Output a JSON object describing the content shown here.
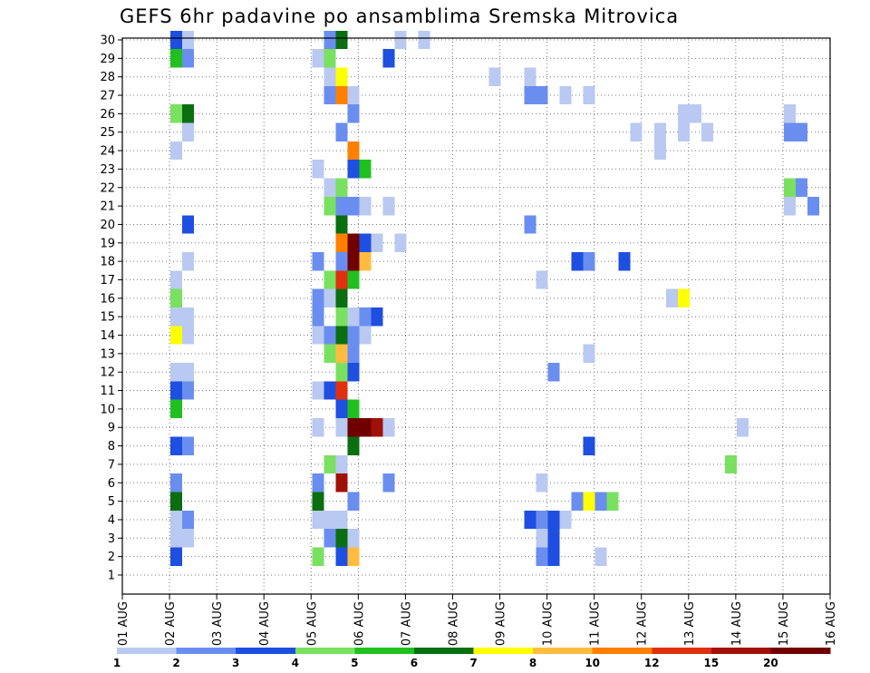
{
  "chart_data": {
    "type": "heatmap",
    "title": "GEFS 6hr padavine po ansamblima Sremska Mitrovica",
    "xlabel": "",
    "ylabel": "",
    "x_tick_labels": [
      "01 AUG",
      "02 AUG",
      "03 AUG",
      "04 AUG",
      "05 AUG",
      "06 AUG",
      "07 AUG",
      "08 AUG",
      "09 AUG",
      "10 AUG",
      "11 AUG",
      "12 AUG",
      "13 AUG",
      "14 AUG",
      "15 AUG",
      "16 AUG"
    ],
    "y_tick_labels": [
      "1",
      "2",
      "3",
      "4",
      "5",
      "6",
      "7",
      "8",
      "9",
      "10",
      "11",
      "12",
      "13",
      "14",
      "15",
      "16",
      "17",
      "18",
      "19",
      "20",
      "21",
      "22",
      "23",
      "24",
      "25",
      "26",
      "27",
      "28",
      "29",
      "30"
    ],
    "grid": true,
    "x_range_days": [
      0,
      15
    ],
    "y_range_members": [
      1,
      30
    ],
    "colorbar": {
      "labels": [
        "1",
        "2",
        "3",
        "4",
        "5",
        "6",
        "7",
        "8",
        "10",
        "12",
        "15",
        "20"
      ],
      "colors": [
        "#b9c9f2",
        "#6a8ef0",
        "#1f4fe0",
        "#7ae060",
        "#20c020",
        "#0b6e10",
        "#ffff00",
        "#ffbc40",
        "#ff8000",
        "#e03010",
        "#a01008",
        "#700000"
      ]
    },
    "legend_placement": "bottom",
    "cells": [
      {
        "m": 30,
        "d": 1.0,
        "c": 2
      },
      {
        "m": 30,
        "d": 1.25,
        "c": 0
      },
      {
        "m": 30,
        "d": 4.25,
        "c": 1
      },
      {
        "m": 30,
        "d": 4.5,
        "c": 5
      },
      {
        "m": 30,
        "d": 5.75,
        "c": 0
      },
      {
        "m": 30,
        "d": 6.25,
        "c": 0
      },
      {
        "m": 29,
        "d": 1.0,
        "c": 4
      },
      {
        "m": 29,
        "d": 1.25,
        "c": 1
      },
      {
        "m": 29,
        "d": 4.0,
        "c": 0
      },
      {
        "m": 29,
        "d": 4.25,
        "c": 3
      },
      {
        "m": 29,
        "d": 5.5,
        "c": 2
      },
      {
        "m": 28,
        "d": 4.25,
        "c": 0
      },
      {
        "m": 28,
        "d": 4.5,
        "c": 6
      },
      {
        "m": 28,
        "d": 7.75,
        "c": 0
      },
      {
        "m": 28,
        "d": 8.5,
        "c": 0
      },
      {
        "m": 27,
        "d": 4.25,
        "c": 1
      },
      {
        "m": 27,
        "d": 4.5,
        "c": 8
      },
      {
        "m": 27,
        "d": 4.75,
        "c": 0
      },
      {
        "m": 27,
        "d": 8.5,
        "c": 1
      },
      {
        "m": 27,
        "d": 8.75,
        "c": 1
      },
      {
        "m": 27,
        "d": 9.25,
        "c": 0
      },
      {
        "m": 27,
        "d": 9.75,
        "c": 0
      },
      {
        "m": 26,
        "d": 1.0,
        "c": 3
      },
      {
        "m": 26,
        "d": 1.25,
        "c": 5
      },
      {
        "m": 26,
        "d": 4.75,
        "c": 1
      },
      {
        "m": 26,
        "d": 11.75,
        "c": 0
      },
      {
        "m": 26,
        "d": 12.0,
        "c": 0
      },
      {
        "m": 26,
        "d": 14.0,
        "c": 0
      },
      {
        "m": 25,
        "d": 1.25,
        "c": 0
      },
      {
        "m": 25,
        "d": 4.5,
        "c": 1
      },
      {
        "m": 25,
        "d": 10.75,
        "c": 0
      },
      {
        "m": 25,
        "d": 11.25,
        "c": 0
      },
      {
        "m": 25,
        "d": 11.75,
        "c": 0
      },
      {
        "m": 25,
        "d": 12.25,
        "c": 0
      },
      {
        "m": 25,
        "d": 14.0,
        "c": 1
      },
      {
        "m": 25,
        "d": 14.25,
        "c": 1
      },
      {
        "m": 24,
        "d": 1.0,
        "c": 0
      },
      {
        "m": 24,
        "d": 4.75,
        "c": 8
      },
      {
        "m": 24,
        "d": 11.25,
        "c": 0
      },
      {
        "m": 23,
        "d": 4.0,
        "c": 0
      },
      {
        "m": 23,
        "d": 4.75,
        "c": 2
      },
      {
        "m": 23,
        "d": 5.0,
        "c": 4
      },
      {
        "m": 22,
        "d": 4.25,
        "c": 0
      },
      {
        "m": 22,
        "d": 4.5,
        "c": 3
      },
      {
        "m": 22,
        "d": 14.0,
        "c": 3
      },
      {
        "m": 22,
        "d": 14.25,
        "c": 1
      },
      {
        "m": 21,
        "d": 4.25,
        "c": 3
      },
      {
        "m": 21,
        "d": 4.5,
        "c": 1
      },
      {
        "m": 21,
        "d": 4.75,
        "c": 1
      },
      {
        "m": 21,
        "d": 5.0,
        "c": 0
      },
      {
        "m": 21,
        "d": 5.5,
        "c": 0
      },
      {
        "m": 21,
        "d": 14.0,
        "c": 0
      },
      {
        "m": 21,
        "d": 14.5,
        "c": 1
      },
      {
        "m": 20,
        "d": 1.25,
        "c": 2
      },
      {
        "m": 20,
        "d": 4.5,
        "c": 5
      },
      {
        "m": 20,
        "d": 8.5,
        "c": 1
      },
      {
        "m": 19,
        "d": 4.5,
        "c": 8
      },
      {
        "m": 19,
        "d": 4.75,
        "c": 11
      },
      {
        "m": 19,
        "d": 5.0,
        "c": 2
      },
      {
        "m": 19,
        "d": 5.25,
        "c": 0
      },
      {
        "m": 19,
        "d": 5.75,
        "c": 0
      },
      {
        "m": 18,
        "d": 1.25,
        "c": 0
      },
      {
        "m": 18,
        "d": 4.0,
        "c": 1
      },
      {
        "m": 18,
        "d": 4.5,
        "c": 1
      },
      {
        "m": 18,
        "d": 4.75,
        "c": 11
      },
      {
        "m": 18,
        "d": 5.0,
        "c": 7
      },
      {
        "m": 18,
        "d": 9.5,
        "c": 2
      },
      {
        "m": 18,
        "d": 9.75,
        "c": 1
      },
      {
        "m": 18,
        "d": 10.5,
        "c": 2
      },
      {
        "m": 17,
        "d": 1.0,
        "c": 0
      },
      {
        "m": 17,
        "d": 4.25,
        "c": 3
      },
      {
        "m": 17,
        "d": 4.5,
        "c": 9
      },
      {
        "m": 17,
        "d": 4.75,
        "c": 4
      },
      {
        "m": 17,
        "d": 8.75,
        "c": 0
      },
      {
        "m": 16,
        "d": 1.0,
        "c": 3
      },
      {
        "m": 16,
        "d": 4.0,
        "c": 1
      },
      {
        "m": 16,
        "d": 4.25,
        "c": 0
      },
      {
        "m": 16,
        "d": 4.5,
        "c": 5
      },
      {
        "m": 16,
        "d": 11.5,
        "c": 0
      },
      {
        "m": 16,
        "d": 11.75,
        "c": 6
      },
      {
        "m": 15,
        "d": 1.0,
        "c": 0
      },
      {
        "m": 15,
        "d": 1.25,
        "c": 0
      },
      {
        "m": 15,
        "d": 4.0,
        "c": 1
      },
      {
        "m": 15,
        "d": 4.5,
        "c": 3
      },
      {
        "m": 15,
        "d": 4.75,
        "c": 0
      },
      {
        "m": 15,
        "d": 5.0,
        "c": 1
      },
      {
        "m": 15,
        "d": 5.25,
        "c": 2
      },
      {
        "m": 14,
        "d": 1.0,
        "c": 6
      },
      {
        "m": 14,
        "d": 1.25,
        "c": 0
      },
      {
        "m": 14,
        "d": 4.0,
        "c": 0
      },
      {
        "m": 14,
        "d": 4.25,
        "c": 1
      },
      {
        "m": 14,
        "d": 4.5,
        "c": 5
      },
      {
        "m": 14,
        "d": 4.75,
        "c": 1
      },
      {
        "m": 14,
        "d": 5.0,
        "c": 0
      },
      {
        "m": 13,
        "d": 4.25,
        "c": 3
      },
      {
        "m": 13,
        "d": 4.5,
        "c": 7
      },
      {
        "m": 13,
        "d": 4.75,
        "c": 1
      },
      {
        "m": 13,
        "d": 9.75,
        "c": 0
      },
      {
        "m": 12,
        "d": 1.0,
        "c": 0
      },
      {
        "m": 12,
        "d": 1.25,
        "c": 0
      },
      {
        "m": 12,
        "d": 4.5,
        "c": 3
      },
      {
        "m": 12,
        "d": 4.75,
        "c": 2
      },
      {
        "m": 12,
        "d": 9.0,
        "c": 1
      },
      {
        "m": 11,
        "d": 1.0,
        "c": 2
      },
      {
        "m": 11,
        "d": 1.25,
        "c": 1
      },
      {
        "m": 11,
        "d": 4.0,
        "c": 0
      },
      {
        "m": 11,
        "d": 4.25,
        "c": 2
      },
      {
        "m": 11,
        "d": 4.5,
        "c": 9
      },
      {
        "m": 10,
        "d": 1.0,
        "c": 4
      },
      {
        "m": 10,
        "d": 4.5,
        "c": 2
      },
      {
        "m": 10,
        "d": 4.75,
        "c": 4
      },
      {
        "m": 9,
        "d": 4.0,
        "c": 0
      },
      {
        "m": 9,
        "d": 4.5,
        "c": 0
      },
      {
        "m": 9,
        "d": 4.75,
        "c": 11
      },
      {
        "m": 9,
        "d": 5.0,
        "c": 11
      },
      {
        "m": 9,
        "d": 5.25,
        "c": 10
      },
      {
        "m": 9,
        "d": 5.5,
        "c": 0
      },
      {
        "m": 9,
        "d": 13.0,
        "c": 0
      },
      {
        "m": 8,
        "d": 1.0,
        "c": 2
      },
      {
        "m": 8,
        "d": 1.25,
        "c": 1
      },
      {
        "m": 8,
        "d": 4.75,
        "c": 5
      },
      {
        "m": 8,
        "d": 9.75,
        "c": 2
      },
      {
        "m": 7,
        "d": 4.25,
        "c": 3
      },
      {
        "m": 7,
        "d": 4.5,
        "c": 0
      },
      {
        "m": 7,
        "d": 12.75,
        "c": 3
      },
      {
        "m": 6,
        "d": 1.0,
        "c": 1
      },
      {
        "m": 6,
        "d": 4.0,
        "c": 1
      },
      {
        "m": 6,
        "d": 4.5,
        "c": 10
      },
      {
        "m": 6,
        "d": 5.5,
        "c": 1
      },
      {
        "m": 6,
        "d": 8.75,
        "c": 0
      },
      {
        "m": 5,
        "d": 1.0,
        "c": 5
      },
      {
        "m": 5,
        "d": 4.0,
        "c": 5
      },
      {
        "m": 5,
        "d": 4.75,
        "c": 1
      },
      {
        "m": 5,
        "d": 9.5,
        "c": 1
      },
      {
        "m": 5,
        "d": 9.75,
        "c": 6
      },
      {
        "m": 5,
        "d": 10.0,
        "c": 1
      },
      {
        "m": 5,
        "d": 10.25,
        "c": 3
      },
      {
        "m": 4,
        "d": 1.0,
        "c": 0
      },
      {
        "m": 4,
        "d": 1.25,
        "c": 1
      },
      {
        "m": 4,
        "d": 4.0,
        "c": 0
      },
      {
        "m": 4,
        "d": 4.25,
        "c": 0
      },
      {
        "m": 4,
        "d": 4.5,
        "c": 0
      },
      {
        "m": 4,
        "d": 8.5,
        "c": 2
      },
      {
        "m": 4,
        "d": 8.75,
        "c": 1
      },
      {
        "m": 4,
        "d": 9.0,
        "c": 2
      },
      {
        "m": 4,
        "d": 9.25,
        "c": 0
      },
      {
        "m": 3,
        "d": 1.0,
        "c": 0
      },
      {
        "m": 3,
        "d": 1.25,
        "c": 0
      },
      {
        "m": 3,
        "d": 4.25,
        "c": 1
      },
      {
        "m": 3,
        "d": 4.5,
        "c": 5
      },
      {
        "m": 3,
        "d": 4.75,
        "c": 0
      },
      {
        "m": 3,
        "d": 8.75,
        "c": 0
      },
      {
        "m": 3,
        "d": 9.0,
        "c": 2
      },
      {
        "m": 2,
        "d": 1.0,
        "c": 2
      },
      {
        "m": 2,
        "d": 4.0,
        "c": 3
      },
      {
        "m": 2,
        "d": 4.5,
        "c": 2
      },
      {
        "m": 2,
        "d": 4.75,
        "c": 7
      },
      {
        "m": 2,
        "d": 8.75,
        "c": 1
      },
      {
        "m": 2,
        "d": 9.0,
        "c": 2
      },
      {
        "m": 2,
        "d": 10.0,
        "c": 0
      }
    ]
  }
}
